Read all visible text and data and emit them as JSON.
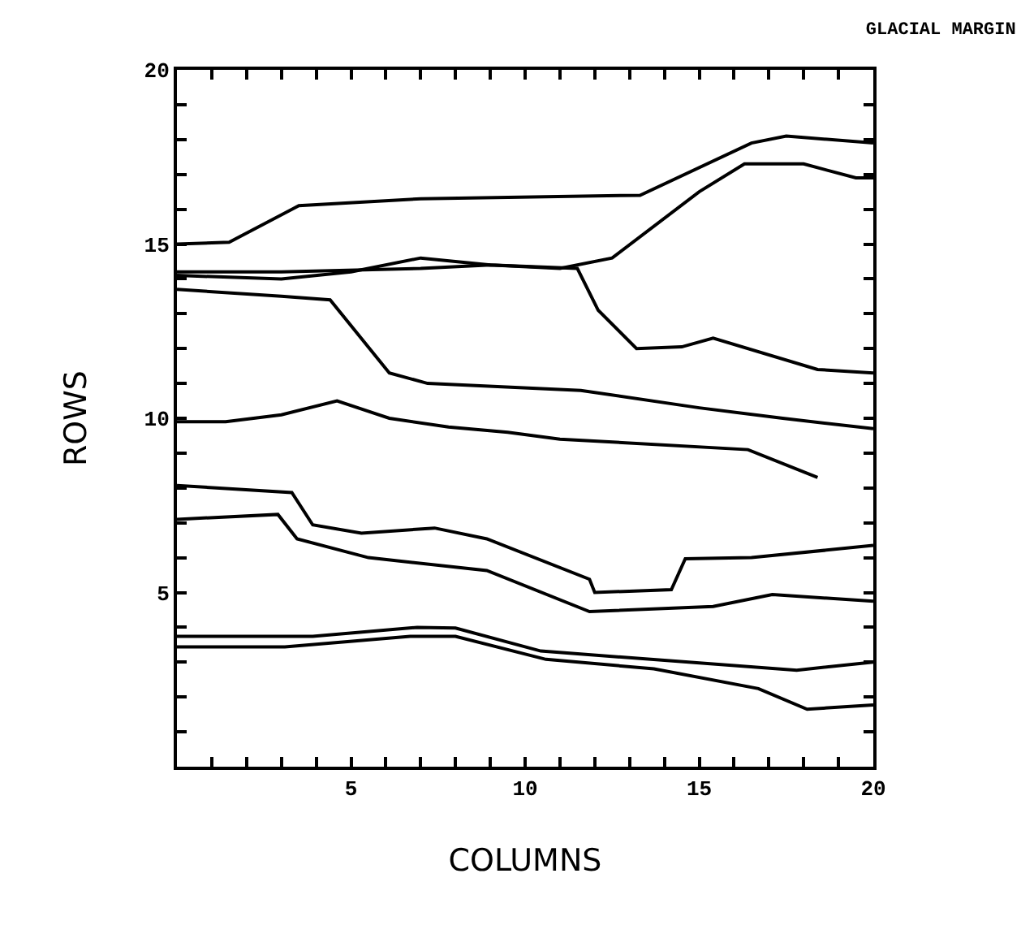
{
  "chart_data": {
    "type": "line",
    "title": "GLACIAL MARGIN",
    "xlabel": "COLUMNS",
    "ylabel": "ROWS",
    "grid": false,
    "marker": "none",
    "line_style": "solid",
    "xlim": [
      0,
      20
    ],
    "ylim": [
      0,
      20
    ],
    "xticks": [
      {
        "value": 0,
        "label": null
      },
      {
        "value": 1,
        "label": null
      },
      {
        "value": 2,
        "label": null
      },
      {
        "value": 3,
        "label": null
      },
      {
        "value": 4,
        "label": null
      },
      5,
      {
        "value": 6,
        "label": null
      },
      {
        "value": 7,
        "label": null
      },
      {
        "value": 8,
        "label": null
      },
      {
        "value": 9,
        "label": null
      },
      10,
      {
        "value": 11,
        "label": null
      },
      {
        "value": 12,
        "label": null
      },
      {
        "value": 13,
        "label": null
      },
      {
        "value": 14,
        "label": null
      },
      15,
      {
        "value": 16,
        "label": null
      },
      {
        "value": 17,
        "label": null
      },
      {
        "value": 18,
        "label": null
      },
      {
        "value": 19,
        "label": null
      },
      20
    ],
    "yticks": [
      {
        "value": 0,
        "label": null
      },
      {
        "value": 1,
        "label": null
      },
      {
        "value": 2,
        "label": null
      },
      {
        "value": 3,
        "label": null
      },
      {
        "value": 4,
        "label": null
      },
      5,
      {
        "value": 6,
        "label": null
      },
      {
        "value": 7,
        "label": null
      },
      {
        "value": 8,
        "label": null
      },
      {
        "value": 9,
        "label": null
      },
      10,
      {
        "value": 11,
        "label": null
      },
      {
        "value": 12,
        "label": null
      },
      {
        "value": 13,
        "label": null
      },
      {
        "value": 14,
        "label": null
      },
      15,
      {
        "value": 16,
        "label": null
      },
      {
        "value": 17,
        "label": null
      },
      {
        "value": 18,
        "label": null
      },
      {
        "value": 19,
        "label": null
      },
      20
    ],
    "series": [
      {
        "color": "#000000",
        "x": [
          0,
          1.5,
          3.5,
          7,
          13.3,
          16.5,
          17.5,
          20
        ],
        "values": [
          15.0,
          15.05,
          16.1,
          16.3,
          16.4,
          17.9,
          18.1,
          17.9
        ]
      },
      {
        "color": "#000000",
        "x": [
          0,
          3,
          7,
          9,
          11,
          12.5,
          15,
          16.3,
          18,
          19.5,
          20
        ],
        "values": [
          14.2,
          14.2,
          14.3,
          14.4,
          14.3,
          14.6,
          16.5,
          17.3,
          17.3,
          16.9,
          16.9
        ]
      },
      {
        "color": "#000000",
        "x": [
          0,
          3,
          5,
          7,
          9,
          11.5,
          12.1,
          13.2,
          14.5,
          15.4,
          18.4,
          20
        ],
        "values": [
          14.1,
          14.0,
          14.2,
          14.6,
          14.4,
          14.3,
          13.1,
          12.0,
          12.05,
          12.3,
          11.4,
          11.3
        ]
      },
      {
        "color": "#000000",
        "x": [
          0,
          3,
          4.4,
          6.1,
          7.2,
          11.6,
          15,
          17.4,
          20
        ],
        "values": [
          13.7,
          13.5,
          13.4,
          11.3,
          11.0,
          10.8,
          10.3,
          10.0,
          9.7
        ]
      },
      {
        "color": "#000000",
        "x": [
          0,
          1.4,
          3,
          4.6,
          6.1,
          7.8,
          9.5,
          11,
          16.4,
          18.4
        ],
        "values": [
          9.9,
          9.9,
          10.1,
          10.5,
          10.0,
          9.75,
          9.6,
          9.4,
          9.1,
          8.3
        ]
      },
      {
        "color": "#000000",
        "x": [
          0,
          3.3,
          3.9,
          5.3,
          7.4,
          8.9,
          11.85,
          12.0,
          14.2,
          14.6,
          16.5,
          20
        ],
        "values": [
          8.07,
          7.87,
          6.94,
          6.7,
          6.85,
          6.54,
          5.38,
          5.0,
          5.08,
          5.97,
          6.0,
          6.35
        ]
      },
      {
        "color": "#000000",
        "x": [
          0,
          2.9,
          3.45,
          5.5,
          8.9,
          11.85,
          15.4,
          17.1,
          20
        ],
        "values": [
          7.1,
          7.24,
          6.54,
          6.0,
          5.63,
          4.45,
          4.6,
          4.94,
          4.75
        ]
      },
      {
        "color": "#000000",
        "x": [
          0,
          3.9,
          6.9,
          8,
          10.45,
          17.8,
          20
        ],
        "values": [
          3.74,
          3.74,
          4.0,
          3.98,
          3.32,
          2.77,
          3.0
        ]
      },
      {
        "color": "#000000",
        "x": [
          0,
          3.1,
          6.7,
          8,
          10.6,
          13.7,
          16.7,
          18.1,
          20
        ],
        "values": [
          3.44,
          3.44,
          3.74,
          3.74,
          3.08,
          2.81,
          2.24,
          1.65,
          1.77
        ]
      }
    ]
  }
}
